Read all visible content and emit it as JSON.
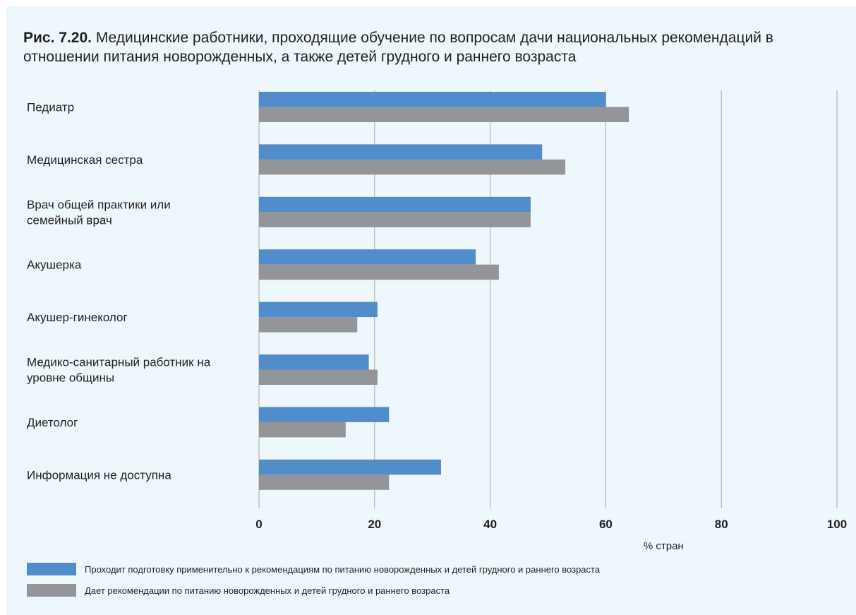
{
  "title": {
    "fig": "Рис. 7.20.",
    "text": " Медицинские работники, проходящие обучение по вопросам дачи национальных рекомендаций в отношении питания новорожденных, а также детей грудного и раннего возраста"
  },
  "colors": {
    "background": "#eef7fb",
    "series1": "#518ccb",
    "series2": "#939598",
    "grid": "#a7a9ac"
  },
  "chart_data": {
    "type": "bar",
    "orientation": "horizontal",
    "categories": [
      [
        "Педиатр"
      ],
      [
        "Медицинская сестра"
      ],
      [
        "Врач общей практики или",
        "семейный врач"
      ],
      [
        "Акушерка"
      ],
      [
        "Акушер-гинеколог"
      ],
      [
        "Медико-санитарный работник на",
        "уровне общины"
      ],
      [
        "Диетолог"
      ],
      [
        "Информация не доступна"
      ]
    ],
    "series": [
      {
        "name": "Проходит подготовку применительно к рекомендациям по питанию новорожденных и детей грудного и раннего возраста",
        "color": "#518ccb",
        "values": [
          60,
          49,
          47,
          37.5,
          20.5,
          19,
          22.5,
          31.5
        ]
      },
      {
        "name": "Дает рекомендации по питанию новорожденных и детей грудного и раннего возраста",
        "color": "#939598",
        "values": [
          64,
          53,
          47,
          41.5,
          17,
          20.5,
          15,
          22.5
        ]
      }
    ],
    "xticks": [
      "0",
      "20",
      "40",
      "60",
      "80",
      "100"
    ],
    "xlim": [
      0,
      100
    ],
    "xlabel": "% стран",
    "grid": true,
    "legend_position": "bottom-left"
  }
}
